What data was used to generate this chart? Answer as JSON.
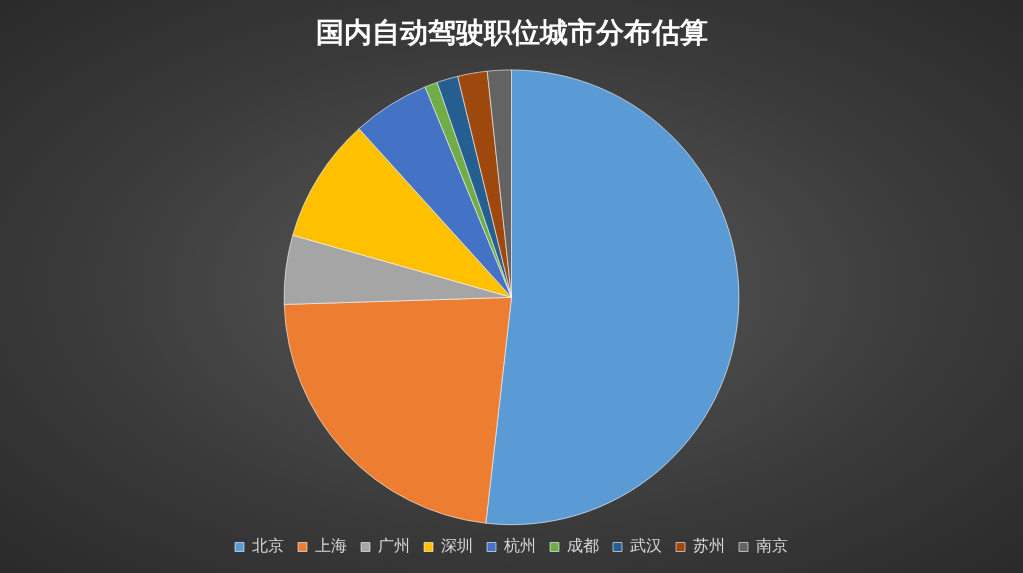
{
  "chart_data": {
    "type": "pie",
    "title": "国内自动驾驶职位城市分布估算",
    "categories": [
      "北京",
      "上海",
      "广州",
      "深圳",
      "杭州",
      "成都",
      "武汉",
      "苏州",
      "南京"
    ],
    "values": [
      51.8,
      22.7,
      4.9,
      8.9,
      5.5,
      0.9,
      1.5,
      2.1,
      1.7
    ],
    "colors": [
      "#5b9bd5",
      "#ed7d31",
      "#a5a5a5",
      "#ffc000",
      "#4472c4",
      "#70ad47",
      "#255e91",
      "#9e480e",
      "#636363"
    ],
    "legend": "bottom"
  }
}
